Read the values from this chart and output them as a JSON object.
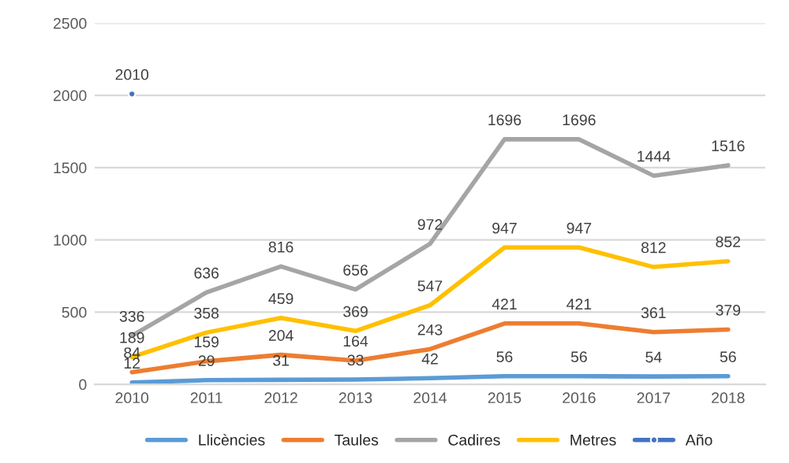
{
  "chart_data": {
    "type": "line",
    "categories": [
      "2010",
      "2011",
      "2012",
      "2013",
      "2014",
      "2015",
      "2016",
      "2017",
      "2018"
    ],
    "series": [
      {
        "name": "Llicències",
        "color": "#5b9bd5",
        "values": [
          12,
          29,
          31,
          33,
          42,
          56,
          56,
          54,
          56
        ]
      },
      {
        "name": "Taules",
        "color": "#ed7d31",
        "values": [
          84,
          159,
          204,
          164,
          243,
          421,
          421,
          361,
          379
        ]
      },
      {
        "name": "Cadires",
        "color": "#a5a5a5",
        "values": [
          336,
          636,
          816,
          656,
          972,
          1696,
          1696,
          1444,
          1516
        ]
      },
      {
        "name": "Metres",
        "color": "#ffc000",
        "values": [
          189,
          358,
          459,
          369,
          547,
          947,
          947,
          812,
          852
        ]
      },
      {
        "name": "Año",
        "color": "#4472c4",
        "marker": "circle",
        "values": [
          2010,
          null,
          null,
          null,
          null,
          null,
          null,
          null,
          null
        ]
      }
    ],
    "ylim": [
      0,
      2500
    ],
    "yticks": [
      0,
      500,
      1000,
      1500,
      2000,
      2500
    ],
    "grid": "y",
    "legend": "bottom",
    "marker": "none",
    "line_style": "solid",
    "data_labels": true
  }
}
